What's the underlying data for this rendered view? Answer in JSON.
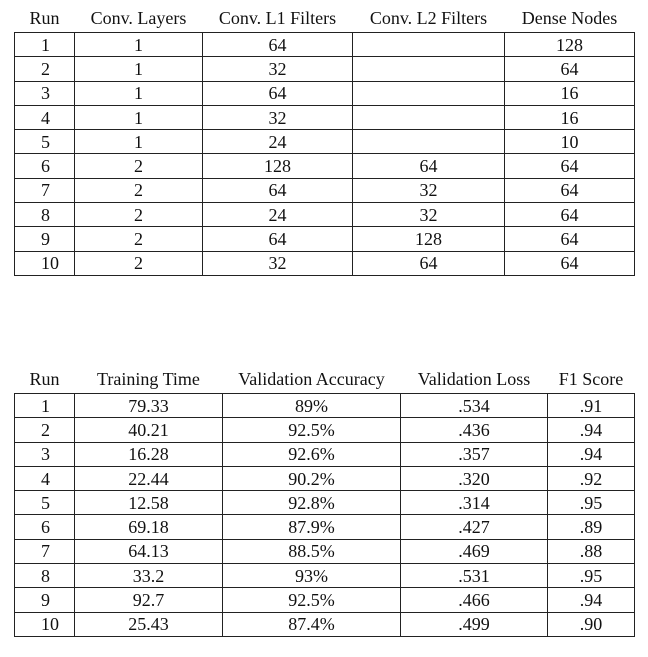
{
  "config_table": {
    "headers": [
      "Run",
      "Conv. Layers",
      "Conv. L1 Filters",
      "Conv. L2 Filters",
      "Dense Nodes"
    ],
    "rows": [
      [
        "1",
        "1",
        "64",
        "",
        "128"
      ],
      [
        "2",
        "1",
        "32",
        "",
        "64"
      ],
      [
        "3",
        "1",
        "64",
        "",
        "16"
      ],
      [
        "4",
        "1",
        "32",
        "",
        "16"
      ],
      [
        "5",
        "1",
        "24",
        "",
        "10"
      ],
      [
        "6",
        "2",
        "128",
        "64",
        "64"
      ],
      [
        "7",
        "2",
        "64",
        "32",
        "64"
      ],
      [
        "8",
        "2",
        "24",
        "32",
        "64"
      ],
      [
        "9",
        "2",
        "64",
        "128",
        "64"
      ],
      [
        "10",
        "2",
        "32",
        "64",
        "64"
      ]
    ]
  },
  "results_table": {
    "headers": [
      "Run",
      "Training Time",
      "Validation Accuracy",
      "Validation Loss",
      "F1 Score"
    ],
    "rows": [
      [
        "1",
        "79.33",
        "89%",
        ".534",
        ".91"
      ],
      [
        "2",
        "40.21",
        "92.5%",
        ".436",
        ".94"
      ],
      [
        "3",
        "16.28",
        "92.6%",
        ".357",
        ".94"
      ],
      [
        "4",
        "22.44",
        "90.2%",
        ".320",
        ".92"
      ],
      [
        "5",
        "12.58",
        "92.8%",
        ".314",
        ".95"
      ],
      [
        "6",
        "69.18",
        "87.9%",
        ".427",
        ".89"
      ],
      [
        "7",
        "64.13",
        "88.5%",
        ".469",
        ".88"
      ],
      [
        "8",
        "33.2",
        "93%",
        ".531",
        ".95"
      ],
      [
        "9",
        "92.7",
        "92.5%",
        ".466",
        ".94"
      ],
      [
        "10",
        "25.43",
        "87.4%",
        ".499",
        ".90"
      ]
    ]
  }
}
